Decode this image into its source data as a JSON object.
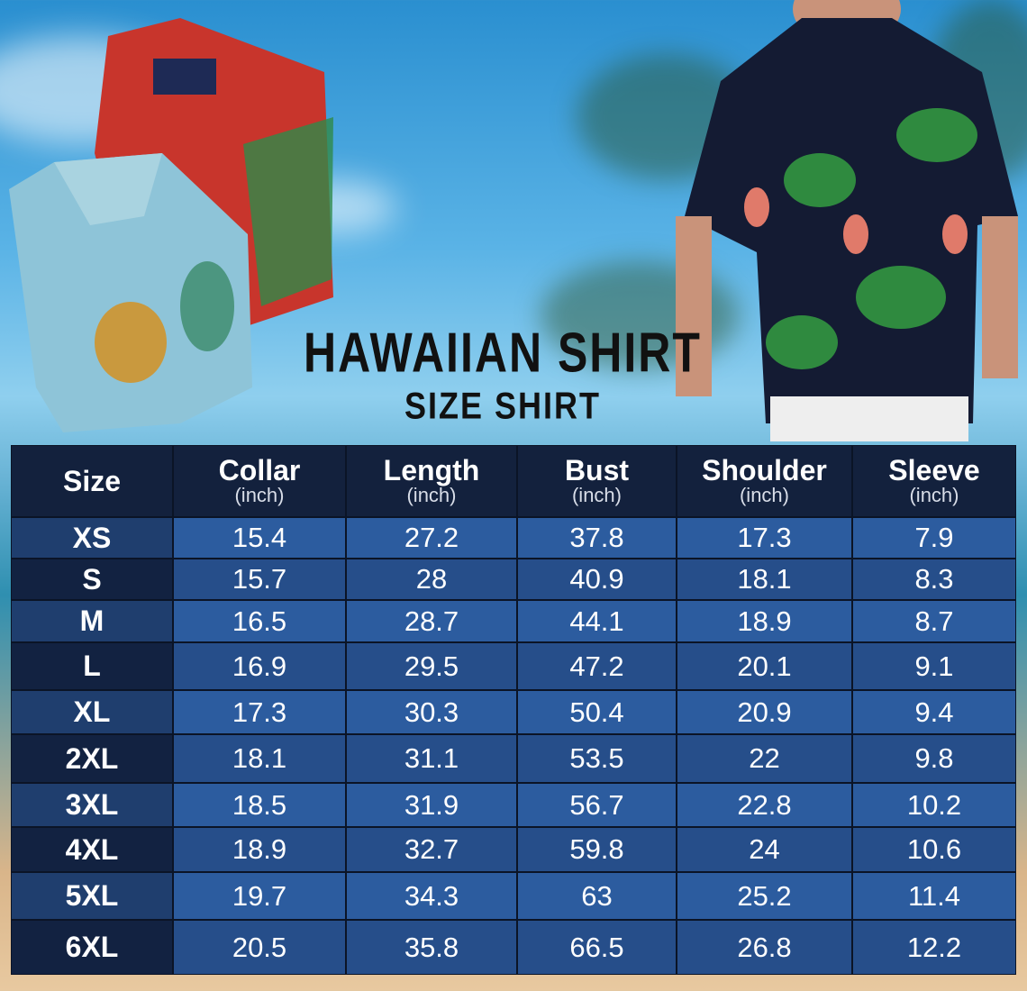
{
  "title": "HAWAIIAN SHIRT",
  "subtitle": "SIZE SHIRT",
  "table": {
    "headers": [
      {
        "label": "Size",
        "unit": ""
      },
      {
        "label": "Collar",
        "unit": "(inch)"
      },
      {
        "label": "Length",
        "unit": "(inch)"
      },
      {
        "label": "Bust",
        "unit": "(inch)"
      },
      {
        "label": "Shoulder",
        "unit": "(inch)"
      },
      {
        "label": "Sleeve",
        "unit": "(inch)"
      }
    ],
    "rows": [
      [
        "XS",
        "15.4",
        "27.2",
        "37.8",
        "17.3",
        "7.9"
      ],
      [
        "S",
        "15.7",
        "28",
        "40.9",
        "18.1",
        "8.3"
      ],
      [
        "M",
        "16.5",
        "28.7",
        "44.1",
        "18.9",
        "8.7"
      ],
      [
        "L",
        "16.9",
        "29.5",
        "47.2",
        "20.1",
        "9.1"
      ],
      [
        "XL",
        "17.3",
        "30.3",
        "50.4",
        "20.9",
        "9.4"
      ],
      [
        "2XL",
        "18.1",
        "31.1",
        "53.5",
        "22",
        "9.8"
      ],
      [
        "3XL",
        "18.5",
        "31.9",
        "56.7",
        "22.8",
        "10.2"
      ],
      [
        "4XL",
        "18.9",
        "32.7",
        "59.8",
        "24",
        "10.6"
      ],
      [
        "5XL",
        "19.7",
        "34.3",
        "63",
        "25.2",
        "11.4"
      ],
      [
        "6XL",
        "20.5",
        "35.8",
        "66.5",
        "26.8",
        "12.2"
      ]
    ]
  }
}
